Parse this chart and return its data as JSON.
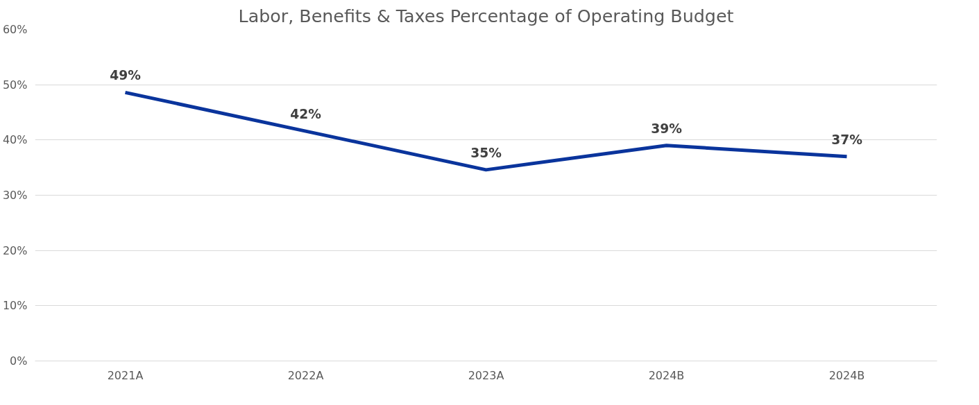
{
  "chart_data": {
    "type": "line",
    "title": "Labor, Benefits & Taxes Percentage of Operating Budget",
    "categories": [
      "2021A",
      "2022A",
      "2023A",
      "2024B",
      "2024B"
    ],
    "series": [
      {
        "color": "#0a349c",
        "values": [
          48.6,
          41.6,
          34.6,
          39.0,
          37.0
        ],
        "value_labels": [
          "49%",
          "42%",
          "35%",
          "39%",
          "37%"
        ]
      }
    ],
    "ylim": [
      0,
      60
    ],
    "yticks": [
      {
        "value": 0,
        "label": "0%"
      },
      {
        "value": 10,
        "label": "10%"
      },
      {
        "value": 20,
        "label": "20%"
      },
      {
        "value": 30,
        "label": "30%"
      },
      {
        "value": 40,
        "label": "40%"
      },
      {
        "value": 50,
        "label": "50%"
      },
      {
        "value": 60,
        "label": "60%"
      }
    ],
    "grid": "y",
    "marker": "none",
    "line_style": "solid"
  }
}
